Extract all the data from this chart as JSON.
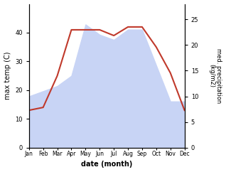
{
  "months": [
    "Jan",
    "Feb",
    "Mar",
    "Apr",
    "May",
    "Jun",
    "Jul",
    "Aug",
    "Sep",
    "Oct",
    "Nov",
    "Dec"
  ],
  "x": [
    0,
    1,
    2,
    3,
    4,
    5,
    6,
    7,
    8,
    9,
    10,
    11
  ],
  "temp": [
    13,
    14,
    25,
    41,
    41,
    41,
    39,
    42,
    42,
    35,
    26,
    13
  ],
  "precip": [
    10,
    11,
    12,
    14,
    24,
    22,
    21,
    23,
    23,
    16,
    9,
    9
  ],
  "temp_color": "#c0392b",
  "precip_color_fill": "#c8d4f5",
  "precip_color_edge": "#a0aada",
  "temp_ylim": [
    0,
    50
  ],
  "precip_ylim": [
    0,
    28
  ],
  "temp_yticks": [
    0,
    10,
    20,
    30,
    40
  ],
  "precip_yticks": [
    0,
    5,
    10,
    15,
    20,
    25
  ],
  "ylabel_left": "max temp (C)",
  "ylabel_right": "med. precipitation\n(kg/m2)",
  "xlabel": "date (month)",
  "bg_color": "#ffffff"
}
